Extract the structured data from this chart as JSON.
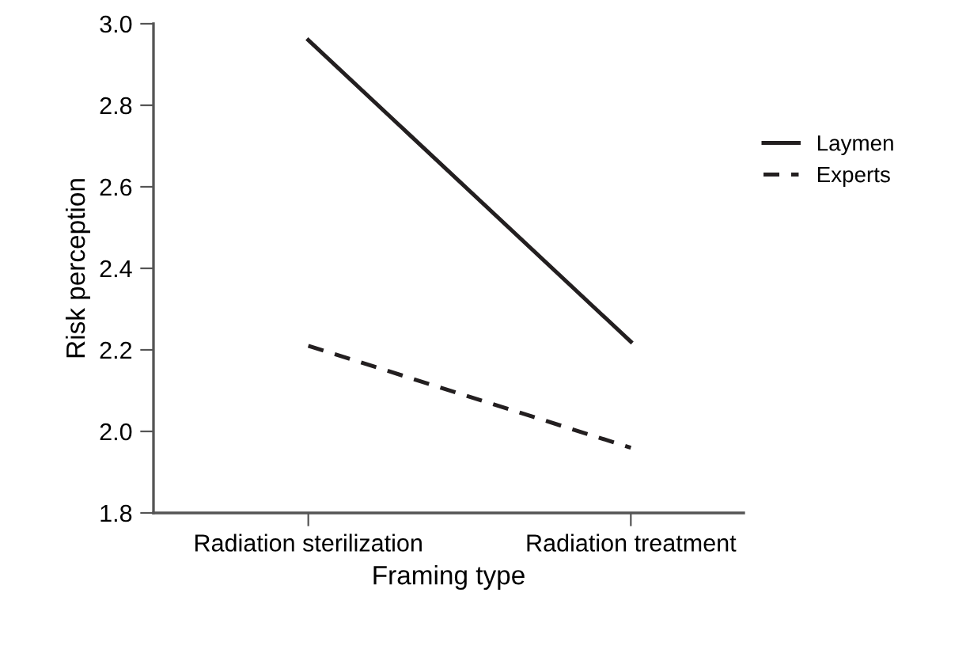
{
  "chart_data": {
    "type": "line",
    "xlabel": "Framing type",
    "ylabel": "Risk perception",
    "categories": [
      "Radiation sterilization",
      "Radiation treatment"
    ],
    "series": [
      {
        "name": "Laymen",
        "color": "#231f20",
        "values": [
          2.96,
          2.22
        ],
        "line_style": "solid"
      },
      {
        "name": "Experts",
        "color": "#231f20",
        "values": [
          2.21,
          1.96
        ],
        "line_style": "dashed"
      }
    ],
    "ylim": [
      1.8,
      3.0
    ],
    "yticks": [
      {
        "value": 1.8,
        "label": "1.8"
      },
      {
        "value": 2.0,
        "label": "2.0"
      },
      {
        "value": 2.2,
        "label": "2.2"
      },
      {
        "value": 2.4,
        "label": "2.4"
      },
      {
        "value": 2.6,
        "label": "2.6"
      },
      {
        "value": 2.8,
        "label": "2.8"
      },
      {
        "value": 3.0,
        "label": "3.0"
      }
    ],
    "grid": false,
    "legend": "right",
    "marker": "none"
  }
}
